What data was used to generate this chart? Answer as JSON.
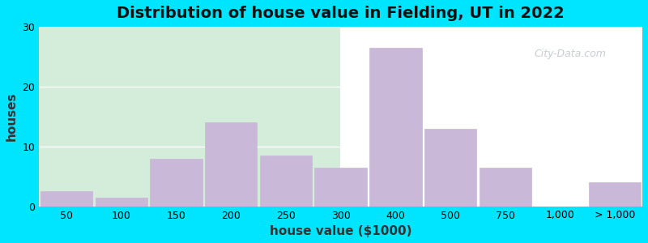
{
  "title": "Distribution of house value in Fielding, UT in 2022",
  "xlabel": "house value ($1000)",
  "ylabel": "houses",
  "bar_color": "#c9b8d8",
  "bar_edgecolor": "#c9b8d8",
  "background_outer": "#00e5ff",
  "ylim": [
    0,
    30
  ],
  "yticks": [
    0,
    10,
    20,
    30
  ],
  "bar_labels": [
    "50",
    "100",
    "150",
    "200",
    "250",
    "300",
    "400",
    "500",
    "750",
    "1,000",
    "> 1,000"
  ],
  "bar_values": [
    2.5,
    1.5,
    8,
    14,
    8.5,
    6.5,
    26.5,
    13,
    6.5,
    0,
    4
  ],
  "bar_widths": [
    1,
    1,
    1,
    1,
    1,
    1,
    1,
    1,
    1,
    1,
    1
  ],
  "bar_positions": [
    0,
    1,
    2,
    3,
    4,
    5,
    6,
    7,
    8,
    9,
    10
  ],
  "title_fontsize": 14,
  "axis_fontsize": 11
}
